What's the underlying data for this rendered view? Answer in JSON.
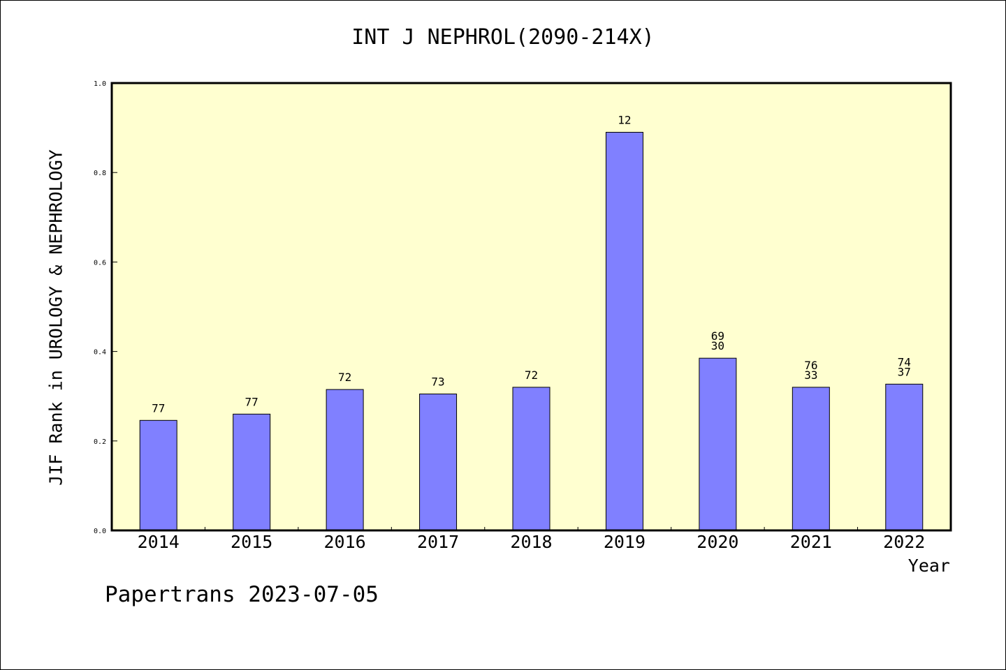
{
  "chart_data": {
    "type": "bar",
    "title": "INT J NEPHROL(2090-214X)",
    "xlabel": "Year",
    "ylabel": "JIF Rank in UROLOGY & NEPHROLOGY",
    "categories": [
      "2014",
      "2015",
      "2016",
      "2017",
      "2018",
      "2019",
      "2020",
      "2021",
      "2022"
    ],
    "values": [
      0.246,
      0.26,
      0.315,
      0.305,
      0.32,
      0.89,
      0.385,
      0.32,
      0.327
    ],
    "bar_labels": [
      [
        "77"
      ],
      [
        "77"
      ],
      [
        "72"
      ],
      [
        "73"
      ],
      [
        "72"
      ],
      [
        "12"
      ],
      [
        "69",
        "30"
      ],
      [
        "76",
        "33"
      ],
      [
        "74",
        "37"
      ]
    ],
    "ylim": [
      0,
      1.0
    ],
    "yticks": [
      "0.0",
      "0.2",
      "0.4",
      "0.6",
      "0.8",
      "1.0"
    ],
    "grid": false,
    "colors": {
      "bar": "#8080ff",
      "plot_bg": "#ffffd0",
      "axis": "#000000"
    }
  },
  "footer": "Papertrans 2023-07-05"
}
